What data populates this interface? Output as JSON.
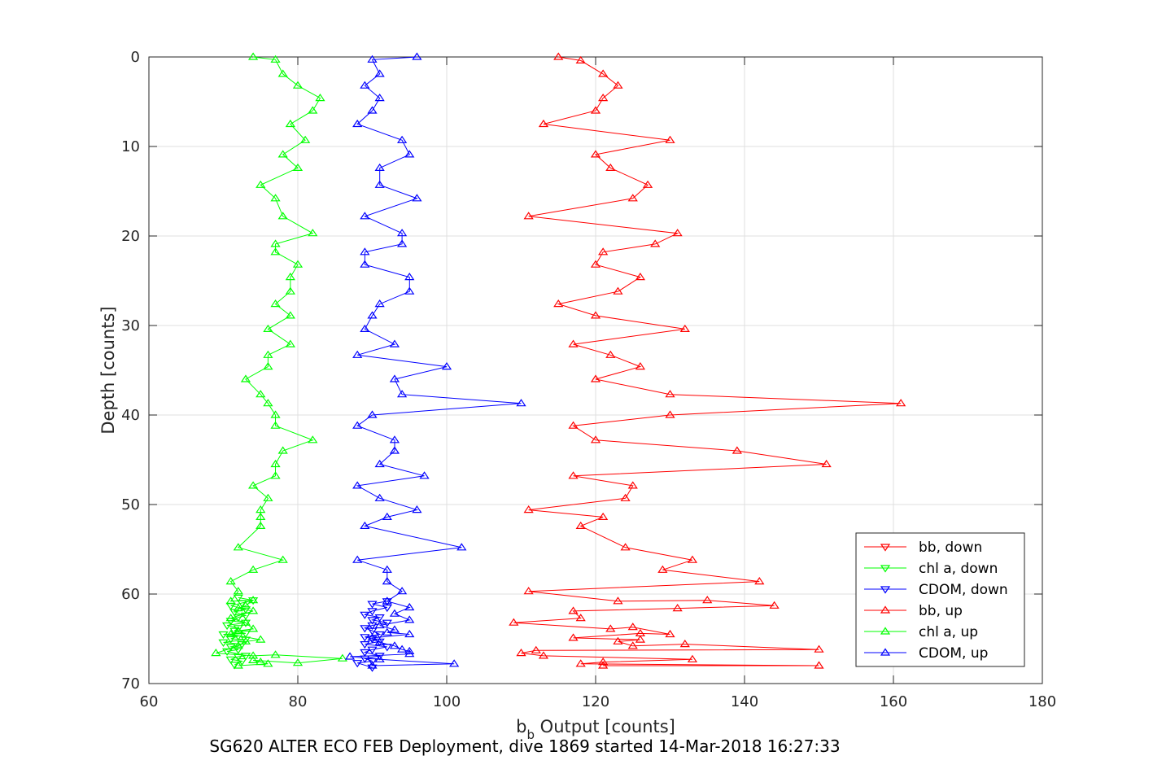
{
  "chart_data": {
    "type": "line",
    "caption": "SG620 ALTER ECO FEB Deployment, dive 1869 started 14-Mar-2018 16:27:33",
    "xlabel_main": "b",
    "xlabel_sub": "b",
    "xlabel_rest": " Output [counts]",
    "ylabel": "Depth [counts]",
    "xlim": [
      60,
      180
    ],
    "ylim": [
      0,
      70
    ],
    "y_reversed": true,
    "xticks": [
      60,
      80,
      100,
      120,
      140,
      160,
      180
    ],
    "yticks": [
      0,
      10,
      20,
      30,
      40,
      50,
      60,
      70
    ],
    "grid": true,
    "legend_position": "bottom-right",
    "series": [
      {
        "name": "bb, down",
        "color": "#ff0000",
        "marker": "triangle-down",
        "points": []
      },
      {
        "name": "chl a, down",
        "color": "#00ff00",
        "marker": "triangle-down",
        "points": [
          [
            71.5,
            67.9
          ],
          [
            72.5,
            67.5
          ],
          [
            71,
            67.3
          ],
          [
            72,
            67.0
          ],
          [
            73,
            66.9
          ],
          [
            70.5,
            66.4
          ],
          [
            72,
            66.2
          ],
          [
            71,
            65.9
          ],
          [
            72.5,
            65.6
          ],
          [
            70,
            65.4
          ],
          [
            73,
            65.1
          ],
          [
            71,
            65.0
          ],
          [
            72,
            64.7
          ],
          [
            70,
            64.5
          ],
          [
            73,
            64.4
          ],
          [
            71.5,
            64.1
          ],
          [
            72,
            63.8
          ],
          [
            70.5,
            63.5
          ],
          [
            73,
            63.2
          ],
          [
            71,
            63.0
          ],
          [
            72,
            62.6
          ],
          [
            73,
            62.4
          ],
          [
            71.5,
            62.0
          ],
          [
            73,
            61.7
          ],
          [
            71,
            61.3
          ],
          [
            72.5,
            61.0
          ],
          [
            74,
            60.7
          ],
          [
            72,
            60.4
          ]
        ]
      },
      {
        "name": "CDOM, down",
        "color": "#0000ff",
        "marker": "triangle-down",
        "points": [
          [
            90,
            68.2
          ],
          [
            88,
            67.7
          ],
          [
            90,
            67.5
          ],
          [
            89,
            67.2
          ],
          [
            91,
            66.9
          ],
          [
            89,
            66.5
          ],
          [
            90,
            66.2
          ],
          [
            92,
            65.9
          ],
          [
            89,
            65.6
          ],
          [
            91,
            65.3
          ],
          [
            90,
            65.0
          ],
          [
            89,
            64.8
          ],
          [
            91,
            64.5
          ],
          [
            90,
            64.1
          ],
          [
            89,
            63.8
          ],
          [
            90,
            63.5
          ],
          [
            92,
            63.2
          ],
          [
            90,
            62.9
          ],
          [
            91,
            62.6
          ],
          [
            89,
            62.3
          ],
          [
            90,
            61.9
          ],
          [
            92,
            61.5
          ],
          [
            90,
            61.1
          ],
          [
            92,
            60.8
          ]
        ]
      },
      {
        "name": "bb, up",
        "color": "#ff0000",
        "marker": "triangle-up",
        "points": [
          [
            115,
            0
          ],
          [
            118,
            0.4
          ],
          [
            121,
            1.9
          ],
          [
            123,
            3.2
          ],
          [
            121,
            4.6
          ],
          [
            120,
            6.0
          ],
          [
            113,
            7.5
          ],
          [
            130,
            9.3
          ],
          [
            120,
            10.9
          ],
          [
            122,
            12.4
          ],
          [
            127,
            14.3
          ],
          [
            125,
            15.8
          ],
          [
            111,
            17.8
          ],
          [
            131,
            19.7
          ],
          [
            128,
            20.9
          ],
          [
            121,
            21.8
          ],
          [
            120,
            23.2
          ],
          [
            126,
            24.6
          ],
          [
            123,
            26.2
          ],
          [
            115,
            27.6
          ],
          [
            120,
            28.9
          ],
          [
            132,
            30.4
          ],
          [
            117,
            32.1
          ],
          [
            122,
            33.3
          ],
          [
            126,
            34.6
          ],
          [
            120,
            36.0
          ],
          [
            130,
            37.7
          ],
          [
            161,
            38.7
          ],
          [
            130,
            40.0
          ],
          [
            117,
            41.2
          ],
          [
            120,
            42.8
          ],
          [
            139,
            44.0
          ],
          [
            151,
            45.5
          ],
          [
            117,
            46.8
          ],
          [
            125,
            47.9
          ],
          [
            124,
            49.3
          ],
          [
            111,
            50.6
          ],
          [
            121,
            51.4
          ],
          [
            118,
            52.4
          ],
          [
            124,
            54.8
          ],
          [
            133,
            56.2
          ],
          [
            129,
            57.3
          ],
          [
            142,
            58.6
          ],
          [
            111,
            59.7
          ],
          [
            123,
            60.8
          ],
          [
            135,
            60.7
          ],
          [
            144,
            61.3
          ],
          [
            131,
            61.6
          ],
          [
            117,
            61.9
          ],
          [
            118,
            62.7
          ],
          [
            109,
            63.2
          ],
          [
            122,
            63.9
          ],
          [
            125,
            63.7
          ],
          [
            130,
            64.5
          ],
          [
            126,
            64.4
          ],
          [
            117,
            64.9
          ],
          [
            126,
            65.1
          ],
          [
            123,
            65.3
          ],
          [
            125,
            65.8
          ],
          [
            132,
            65.6
          ],
          [
            150,
            66.2
          ],
          [
            112,
            66.3
          ],
          [
            110,
            66.6
          ],
          [
            113,
            66.9
          ],
          [
            133,
            67.3
          ],
          [
            121,
            67.6
          ],
          [
            118,
            67.8
          ],
          [
            150,
            68.0
          ],
          [
            121,
            68.0
          ]
        ]
      },
      {
        "name": "chl a, up",
        "color": "#00ff00",
        "marker": "triangle-up",
        "points": [
          [
            74,
            0
          ],
          [
            77,
            0.3
          ],
          [
            78,
            1.9
          ],
          [
            80,
            3.2
          ],
          [
            83,
            4.6
          ],
          [
            82,
            6.0
          ],
          [
            79,
            7.5
          ],
          [
            81,
            9.3
          ],
          [
            78,
            10.9
          ],
          [
            80,
            12.4
          ],
          [
            75,
            14.3
          ],
          [
            77,
            15.8
          ],
          [
            78,
            17.8
          ],
          [
            82,
            19.7
          ],
          [
            77,
            20.9
          ],
          [
            77,
            21.8
          ],
          [
            80,
            23.2
          ],
          [
            79,
            24.6
          ],
          [
            79,
            26.2
          ],
          [
            77,
            27.6
          ],
          [
            79,
            28.9
          ],
          [
            76,
            30.4
          ],
          [
            79,
            32.1
          ],
          [
            76,
            33.3
          ],
          [
            76,
            34.6
          ],
          [
            73,
            36.0
          ],
          [
            75,
            37.7
          ],
          [
            76,
            38.7
          ],
          [
            77,
            40.0
          ],
          [
            77,
            41.2
          ],
          [
            82,
            42.8
          ],
          [
            78,
            44.0
          ],
          [
            77,
            45.5
          ],
          [
            77,
            46.8
          ],
          [
            74,
            47.9
          ],
          [
            76,
            49.3
          ],
          [
            75,
            50.6
          ],
          [
            75,
            51.4
          ],
          [
            75,
            52.4
          ],
          [
            72,
            54.8
          ],
          [
            78,
            56.2
          ],
          [
            74,
            57.3
          ],
          [
            71,
            58.6
          ],
          [
            72,
            59.7
          ],
          [
            71,
            60.8
          ],
          [
            74,
            60.7
          ],
          [
            73,
            61.3
          ],
          [
            72,
            61.6
          ],
          [
            74,
            61.9
          ],
          [
            71,
            62.7
          ],
          [
            73,
            63.2
          ],
          [
            74,
            63.9
          ],
          [
            72,
            64.1
          ],
          [
            71,
            64.5
          ],
          [
            75,
            65.1
          ],
          [
            73,
            65.3
          ],
          [
            72,
            65.8
          ],
          [
            69,
            66.6
          ],
          [
            74,
            66.9
          ],
          [
            77,
            66.8
          ],
          [
            86,
            67.2
          ],
          [
            80,
            67.7
          ],
          [
            74,
            67.4
          ],
          [
            75,
            67.6
          ],
          [
            76,
            67.8
          ],
          [
            72,
            68.0
          ]
        ]
      },
      {
        "name": "CDOM, up",
        "color": "#0000ff",
        "marker": "triangle-up",
        "points": [
          [
            96,
            0
          ],
          [
            90,
            0.3
          ],
          [
            91,
            1.9
          ],
          [
            89,
            3.2
          ],
          [
            91,
            4.6
          ],
          [
            90,
            6.0
          ],
          [
            88,
            7.5
          ],
          [
            94,
            9.3
          ],
          [
            95,
            10.9
          ],
          [
            91,
            12.4
          ],
          [
            91,
            14.3
          ],
          [
            96,
            15.8
          ],
          [
            89,
            17.8
          ],
          [
            94,
            19.7
          ],
          [
            94,
            20.9
          ],
          [
            89,
            21.8
          ],
          [
            89,
            23.2
          ],
          [
            95,
            24.6
          ],
          [
            95,
            26.2
          ],
          [
            91,
            27.6
          ],
          [
            90,
            28.9
          ],
          [
            89,
            30.4
          ],
          [
            93,
            32.1
          ],
          [
            88,
            33.3
          ],
          [
            100,
            34.6
          ],
          [
            93,
            36.0
          ],
          [
            94,
            37.7
          ],
          [
            110,
            38.7
          ],
          [
            90,
            40.0
          ],
          [
            88,
            41.2
          ],
          [
            93,
            42.8
          ],
          [
            93,
            44.0
          ],
          [
            91,
            45.5
          ],
          [
            97,
            46.8
          ],
          [
            88,
            47.9
          ],
          [
            91,
            49.3
          ],
          [
            96,
            50.6
          ],
          [
            92,
            51.4
          ],
          [
            89,
            52.4
          ],
          [
            102,
            54.8
          ],
          [
            88,
            56.2
          ],
          [
            92,
            57.3
          ],
          [
            92,
            58.6
          ],
          [
            94,
            59.7
          ],
          [
            92,
            60.8
          ],
          [
            95,
            61.5
          ],
          [
            93,
            62.2
          ],
          [
            95,
            62.9
          ],
          [
            91,
            63.5
          ],
          [
            93,
            64.0
          ],
          [
            92,
            64.3
          ],
          [
            95,
            64.5
          ],
          [
            90,
            64.9
          ],
          [
            91,
            65.4
          ],
          [
            93,
            65.8
          ],
          [
            94,
            66.2
          ],
          [
            95,
            66.4
          ],
          [
            95,
            66.7
          ],
          [
            87,
            67.0
          ],
          [
            91,
            67.3
          ],
          [
            101,
            67.8
          ],
          [
            90,
            68.0
          ]
        ]
      }
    ]
  }
}
